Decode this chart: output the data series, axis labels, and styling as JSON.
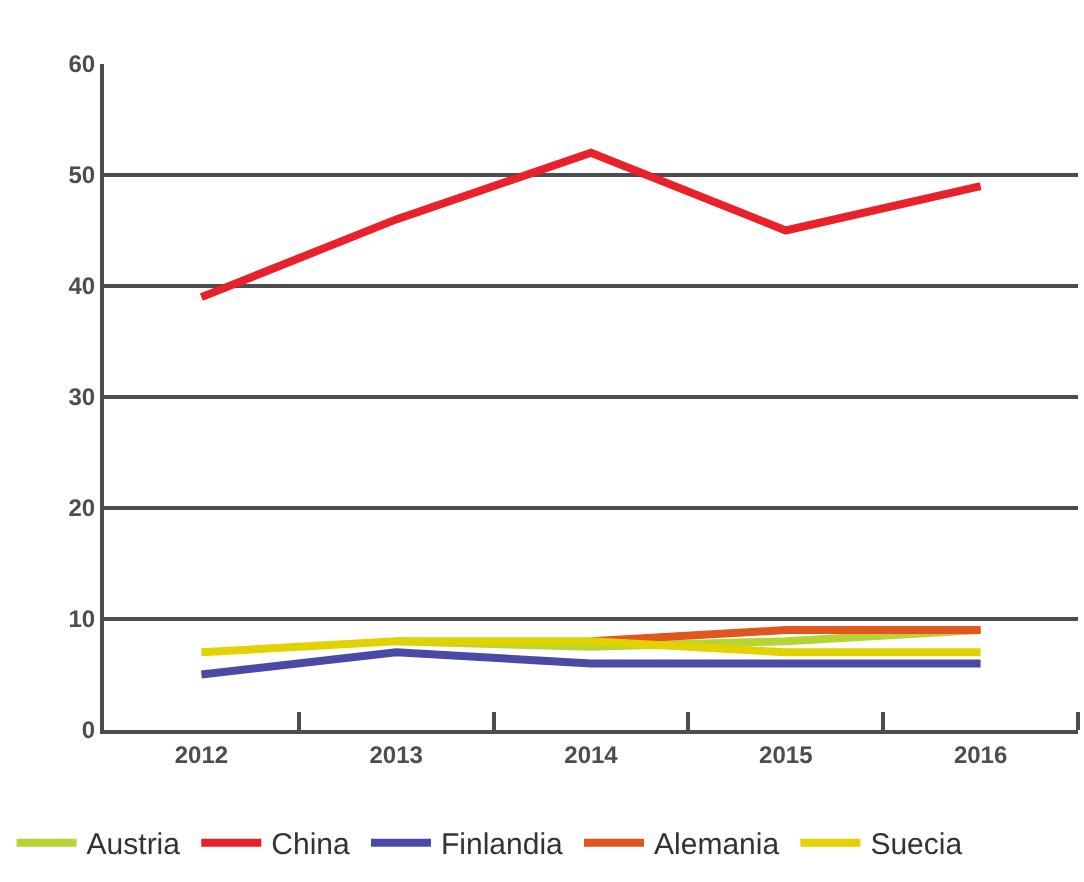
{
  "chart_data": {
    "type": "line",
    "categories": [
      "2012",
      "2013",
      "2014",
      "2015",
      "2016"
    ],
    "series": [
      {
        "name": "Austria",
        "color": "#b8d432",
        "values": [
          null,
          8,
          7.5,
          8,
          9
        ]
      },
      {
        "name": "China",
        "color": "#e8212b",
        "values": [
          39,
          46,
          52,
          45,
          49
        ]
      },
      {
        "name": "Finlandia",
        "color": "#4a4aa6",
        "values": [
          5,
          7,
          6,
          6,
          6
        ]
      },
      {
        "name": "Alemania",
        "color": "#e0561e",
        "values": [
          null,
          null,
          8,
          9,
          9
        ]
      },
      {
        "name": "Suecia",
        "color": "#e2d200",
        "values": [
          7,
          8,
          8,
          7,
          7
        ]
      }
    ],
    "ylim": [
      0,
      60
    ],
    "yticks": [
      0,
      10,
      20,
      30,
      40,
      50,
      60
    ],
    "grid": "y",
    "legend": "bottom",
    "marker": "none",
    "line_style": "solid"
  }
}
